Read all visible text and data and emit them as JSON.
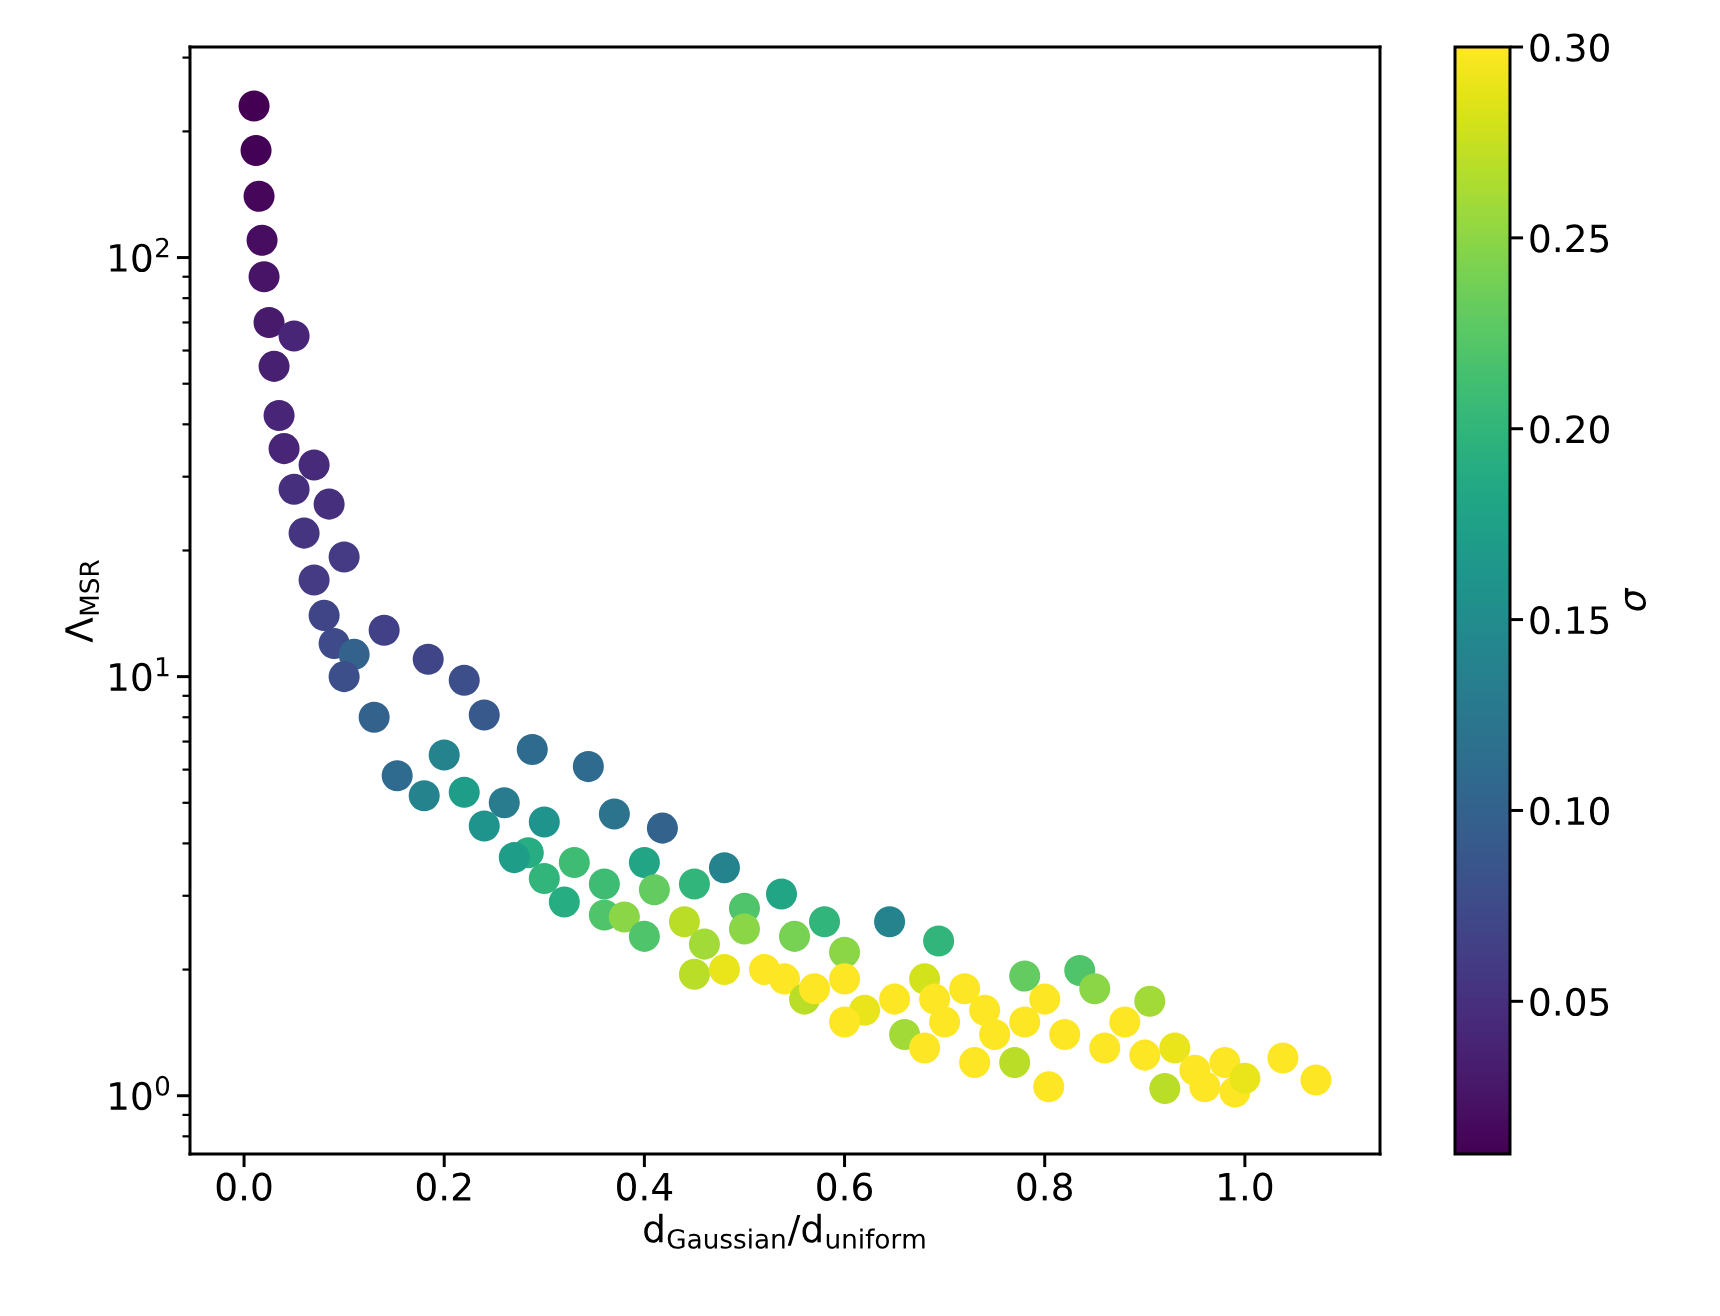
{
  "chart_data": {
    "type": "scatter",
    "xlabel": "d$_{Gaussian}$/d$_{uniform}$",
    "ylabel": "Λ$_{MSR}$",
    "clabel": "σ",
    "log": "y",
    "marker": "circle",
    "grid": false,
    "xlim": [
      -0.054,
      1.135
    ],
    "xticks": [
      {
        "value": 0,
        "label": "0.0"
      },
      0.2,
      0.4,
      0.6,
      0.8,
      {
        "value": 1,
        "label": "1.0"
      }
    ],
    "ylim": [
      0.726,
      318
    ],
    "yticks": [
      {
        "value": 1,
        "label": "10$^{0}$"
      },
      {
        "value": 10,
        "label": "10$^{1}$"
      },
      {
        "value": 100,
        "label": "10$^{2}$"
      }
    ],
    "clim": [
      0.01,
      0.3
    ],
    "cticks": [
      0.05,
      {
        "value": 0.1,
        "label": "0.10"
      },
      0.15,
      {
        "value": 0.2,
        "label": "0.20"
      },
      0.25,
      {
        "value": 0.3,
        "label": "0.30"
      }
    ],
    "series": [
      {
        "x": [
          0.01,
          0.012,
          0.015,
          0.018,
          0.02,
          0.025,
          0.05,
          0.03,
          0.035,
          0.04,
          0.07,
          0.05,
          0.085,
          0.06,
          0.1,
          0.07,
          0.08,
          0.09,
          0.14,
          0.184,
          0.22,
          0.11,
          0.1,
          0.13,
          0.24,
          0.288,
          0.344,
          0.153,
          0.18,
          0.2,
          0.22,
          0.26,
          0.37,
          0.418,
          0.24,
          0.3,
          0.284,
          0.27,
          0.3,
          0.33,
          0.36,
          0.32,
          0.48,
          0.4,
          0.45,
          0.36,
          0.38,
          0.41,
          0.44,
          0.537,
          0.5,
          0.46,
          0.4,
          0.45,
          0.48,
          0.52,
          0.5,
          0.55,
          0.58,
          0.645,
          0.694,
          0.6,
          0.54,
          0.56,
          0.57,
          0.6,
          0.62,
          0.6,
          0.65,
          0.68,
          0.7,
          0.72,
          0.74,
          0.66,
          0.68,
          0.73,
          0.78,
          0.835,
          0.78,
          0.8,
          0.77,
          0.82,
          0.804,
          0.85,
          0.88,
          0.86,
          0.905,
          0.9,
          0.92,
          0.96,
          0.99,
          0.93,
          0.95,
          0.98,
          1.0,
          1.038,
          1.071,
          0.75,
          0.69
        ],
        "values": [
          230,
          180,
          140,
          110,
          90,
          70,
          65,
          55,
          42,
          35,
          32,
          28,
          25.8,
          22,
          19.3,
          17,
          14,
          12,
          12.9,
          11,
          9.8,
          11.3,
          10,
          8,
          8.1,
          6.7,
          6.1,
          5.8,
          5.2,
          6.5,
          5.3,
          5,
          4.7,
          4.35,
          4.4,
          4.5,
          3.8,
          3.7,
          3.3,
          3.6,
          3.2,
          2.9,
          3.5,
          3.6,
          3.2,
          2.7,
          2.67,
          3.1,
          2.6,
          3.03,
          2.8,
          2.3,
          2.4,
          1.95,
          2.0,
          2.0,
          2.5,
          2.4,
          2.6,
          2.6,
          2.34,
          2.2,
          1.9,
          1.7,
          1.8,
          1.9,
          1.6,
          1.5,
          1.7,
          1.9,
          1.5,
          1.8,
          1.6,
          1.4,
          1.3,
          1.2,
          1.93,
          1.99,
          1.5,
          1.7,
          1.2,
          1.4,
          1.05,
          1.8,
          1.5,
          1.3,
          1.68,
          1.25,
          1.04,
          1.05,
          1.02,
          1.3,
          1.15,
          1.2,
          1.1,
          1.23,
          1.09,
          1.4,
          1.7
        ],
        "cvalues": [
          0.01,
          0.012,
          0.015,
          0.02,
          0.025,
          0.03,
          0.04,
          0.035,
          0.04,
          0.04,
          0.045,
          0.05,
          0.05,
          0.055,
          0.06,
          0.06,
          0.07,
          0.075,
          0.065,
          0.07,
          0.08,
          0.1,
          0.08,
          0.1,
          0.09,
          0.11,
          0.11,
          0.11,
          0.14,
          0.14,
          0.17,
          0.13,
          0.12,
          0.1,
          0.16,
          0.16,
          0.19,
          0.17,
          0.2,
          0.21,
          0.21,
          0.19,
          0.14,
          0.18,
          0.2,
          0.22,
          0.25,
          0.23,
          0.27,
          0.18,
          0.22,
          0.26,
          0.22,
          0.27,
          0.29,
          0.3,
          0.25,
          0.24,
          0.2,
          0.14,
          0.2,
          0.25,
          0.3,
          0.27,
          0.3,
          0.3,
          0.29,
          0.3,
          0.3,
          0.28,
          0.3,
          0.3,
          0.3,
          0.26,
          0.3,
          0.3,
          0.23,
          0.22,
          0.3,
          0.3,
          0.27,
          0.3,
          0.3,
          0.25,
          0.3,
          0.3,
          0.26,
          0.3,
          0.27,
          0.3,
          0.3,
          0.29,
          0.3,
          0.3,
          0.29,
          0.3,
          0.3,
          0.3,
          0.3
        ]
      }
    ]
  }
}
